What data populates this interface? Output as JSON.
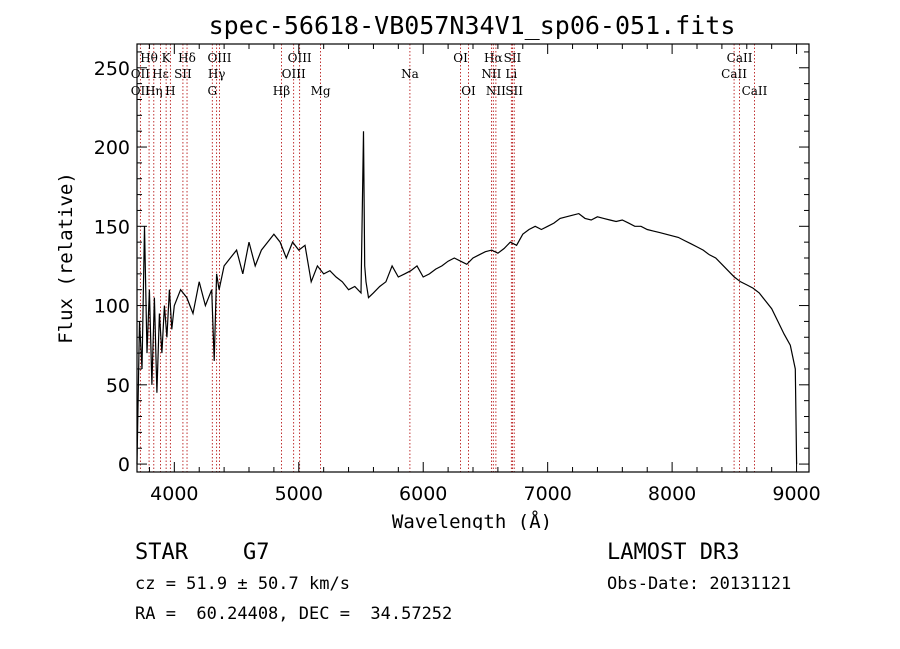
{
  "chart_data": {
    "type": "line",
    "title": "spec-56618-VB057N34V1_sp06-051.fits",
    "xlabel": "Wavelength (Å)",
    "ylabel": "Flux (relative)",
    "xlim": [
      3700,
      9100
    ],
    "ylim": [
      -5,
      265
    ],
    "xticks": [
      4000,
      5000,
      6000,
      7000,
      8000,
      9000
    ],
    "yticks": [
      0,
      50,
      100,
      150,
      200,
      250
    ],
    "series": [
      {
        "name": "flux",
        "x": [
          3700,
          3720,
          3740,
          3760,
          3780,
          3800,
          3820,
          3840,
          3860,
          3880,
          3900,
          3920,
          3940,
          3960,
          3980,
          4000,
          4050,
          4100,
          4150,
          4200,
          4250,
          4300,
          4320,
          4340,
          4360,
          4400,
          4450,
          4500,
          4550,
          4600,
          4650,
          4700,
          4750,
          4800,
          4850,
          4900,
          4950,
          5000,
          5050,
          5100,
          5150,
          5200,
          5250,
          5300,
          5350,
          5400,
          5450,
          5500,
          5520,
          5530,
          5540,
          5560,
          5600,
          5650,
          5700,
          5750,
          5800,
          5850,
          5900,
          5950,
          6000,
          6050,
          6100,
          6150,
          6200,
          6250,
          6300,
          6350,
          6400,
          6450,
          6500,
          6550,
          6600,
          6650,
          6700,
          6750,
          6800,
          6850,
          6900,
          6950,
          7000,
          7050,
          7100,
          7150,
          7200,
          7250,
          7300,
          7350,
          7400,
          7450,
          7500,
          7550,
          7600,
          7650,
          7700,
          7750,
          7800,
          7850,
          7900,
          7950,
          8000,
          8050,
          8100,
          8150,
          8200,
          8250,
          8300,
          8350,
          8400,
          8450,
          8500,
          8550,
          8600,
          8650,
          8700,
          8750,
          8800,
          8850,
          8900,
          8950,
          8990,
          9000
        ],
        "y": [
          0,
          90,
          60,
          150,
          70,
          110,
          50,
          105,
          45,
          95,
          70,
          100,
          80,
          110,
          85,
          100,
          110,
          105,
          95,
          115,
          100,
          110,
          65,
          120,
          110,
          125,
          130,
          135,
          120,
          140,
          125,
          135,
          140,
          145,
          140,
          130,
          140,
          135,
          138,
          115,
          125,
          120,
          122,
          118,
          115,
          110,
          112,
          108,
          210,
          125,
          115,
          105,
          108,
          112,
          115,
          125,
          118,
          120,
          122,
          125,
          118,
          120,
          123,
          125,
          128,
          130,
          128,
          126,
          130,
          132,
          134,
          135,
          133,
          136,
          140,
          138,
          145,
          148,
          150,
          148,
          150,
          152,
          155,
          156,
          157,
          158,
          155,
          154,
          156,
          155,
          154,
          153,
          154,
          152,
          150,
          150,
          148,
          147,
          146,
          145,
          144,
          143,
          141,
          139,
          137,
          135,
          132,
          130,
          126,
          122,
          118,
          115,
          113,
          111,
          108,
          103,
          98,
          90,
          82,
          75,
          60,
          0
        ]
      }
    ],
    "lines_top": [
      {
        "label": "Hθ",
        "x": 3797
      },
      {
        "label": "K",
        "x": 3934
      },
      {
        "label": "Hδ",
        "x": 4102
      },
      {
        "label": "OIII",
        "x": 4363
      },
      {
        "label": "OIII",
        "x": 5007
      },
      {
        "label": "OI",
        "x": 6300
      },
      {
        "label": "Hα",
        "x": 6563
      },
      {
        "label": "SII",
        "x": 6717
      },
      {
        "label": "CaII",
        "x": 8542
      }
    ],
    "lines_mid": [
      {
        "label": "OII",
        "x": 3727
      },
      {
        "label": "Hε",
        "x": 3889
      },
      {
        "label": "SII",
        "x": 4069
      },
      {
        "label": "Hγ",
        "x": 4340
      },
      {
        "label": "OIII",
        "x": 4959
      },
      {
        "label": "Na",
        "x": 5893
      },
      {
        "label": "NII",
        "x": 6548
      },
      {
        "label": "Li",
        "x": 6708
      },
      {
        "label": "CaII",
        "x": 8498
      }
    ],
    "lines_low": [
      {
        "label": "OII",
        "x": 3727
      },
      {
        "label": "Hη",
        "x": 3835
      },
      {
        "label": "H",
        "x": 3968
      },
      {
        "label": "G",
        "x": 4305
      },
      {
        "label": "Hβ",
        "x": 4861
      },
      {
        "label": "Mg",
        "x": 5175
      },
      {
        "label": "OI",
        "x": 6364
      },
      {
        "label": "NII",
        "x": 6584
      },
      {
        "label": "SII",
        "x": 6731
      },
      {
        "label": "CaII",
        "x": 8662
      }
    ]
  },
  "info": {
    "class": "STAR",
    "subclass": "G7",
    "survey": "LAMOST DR3",
    "cz": "cz = 51.9 ± 50.7 km/s",
    "obs_date": "Obs-Date: 20131121",
    "coords": "RA =  60.24408, DEC =  34.57252"
  },
  "colors": {
    "line_marker": "#b00000",
    "spectrum": "#000000"
  }
}
